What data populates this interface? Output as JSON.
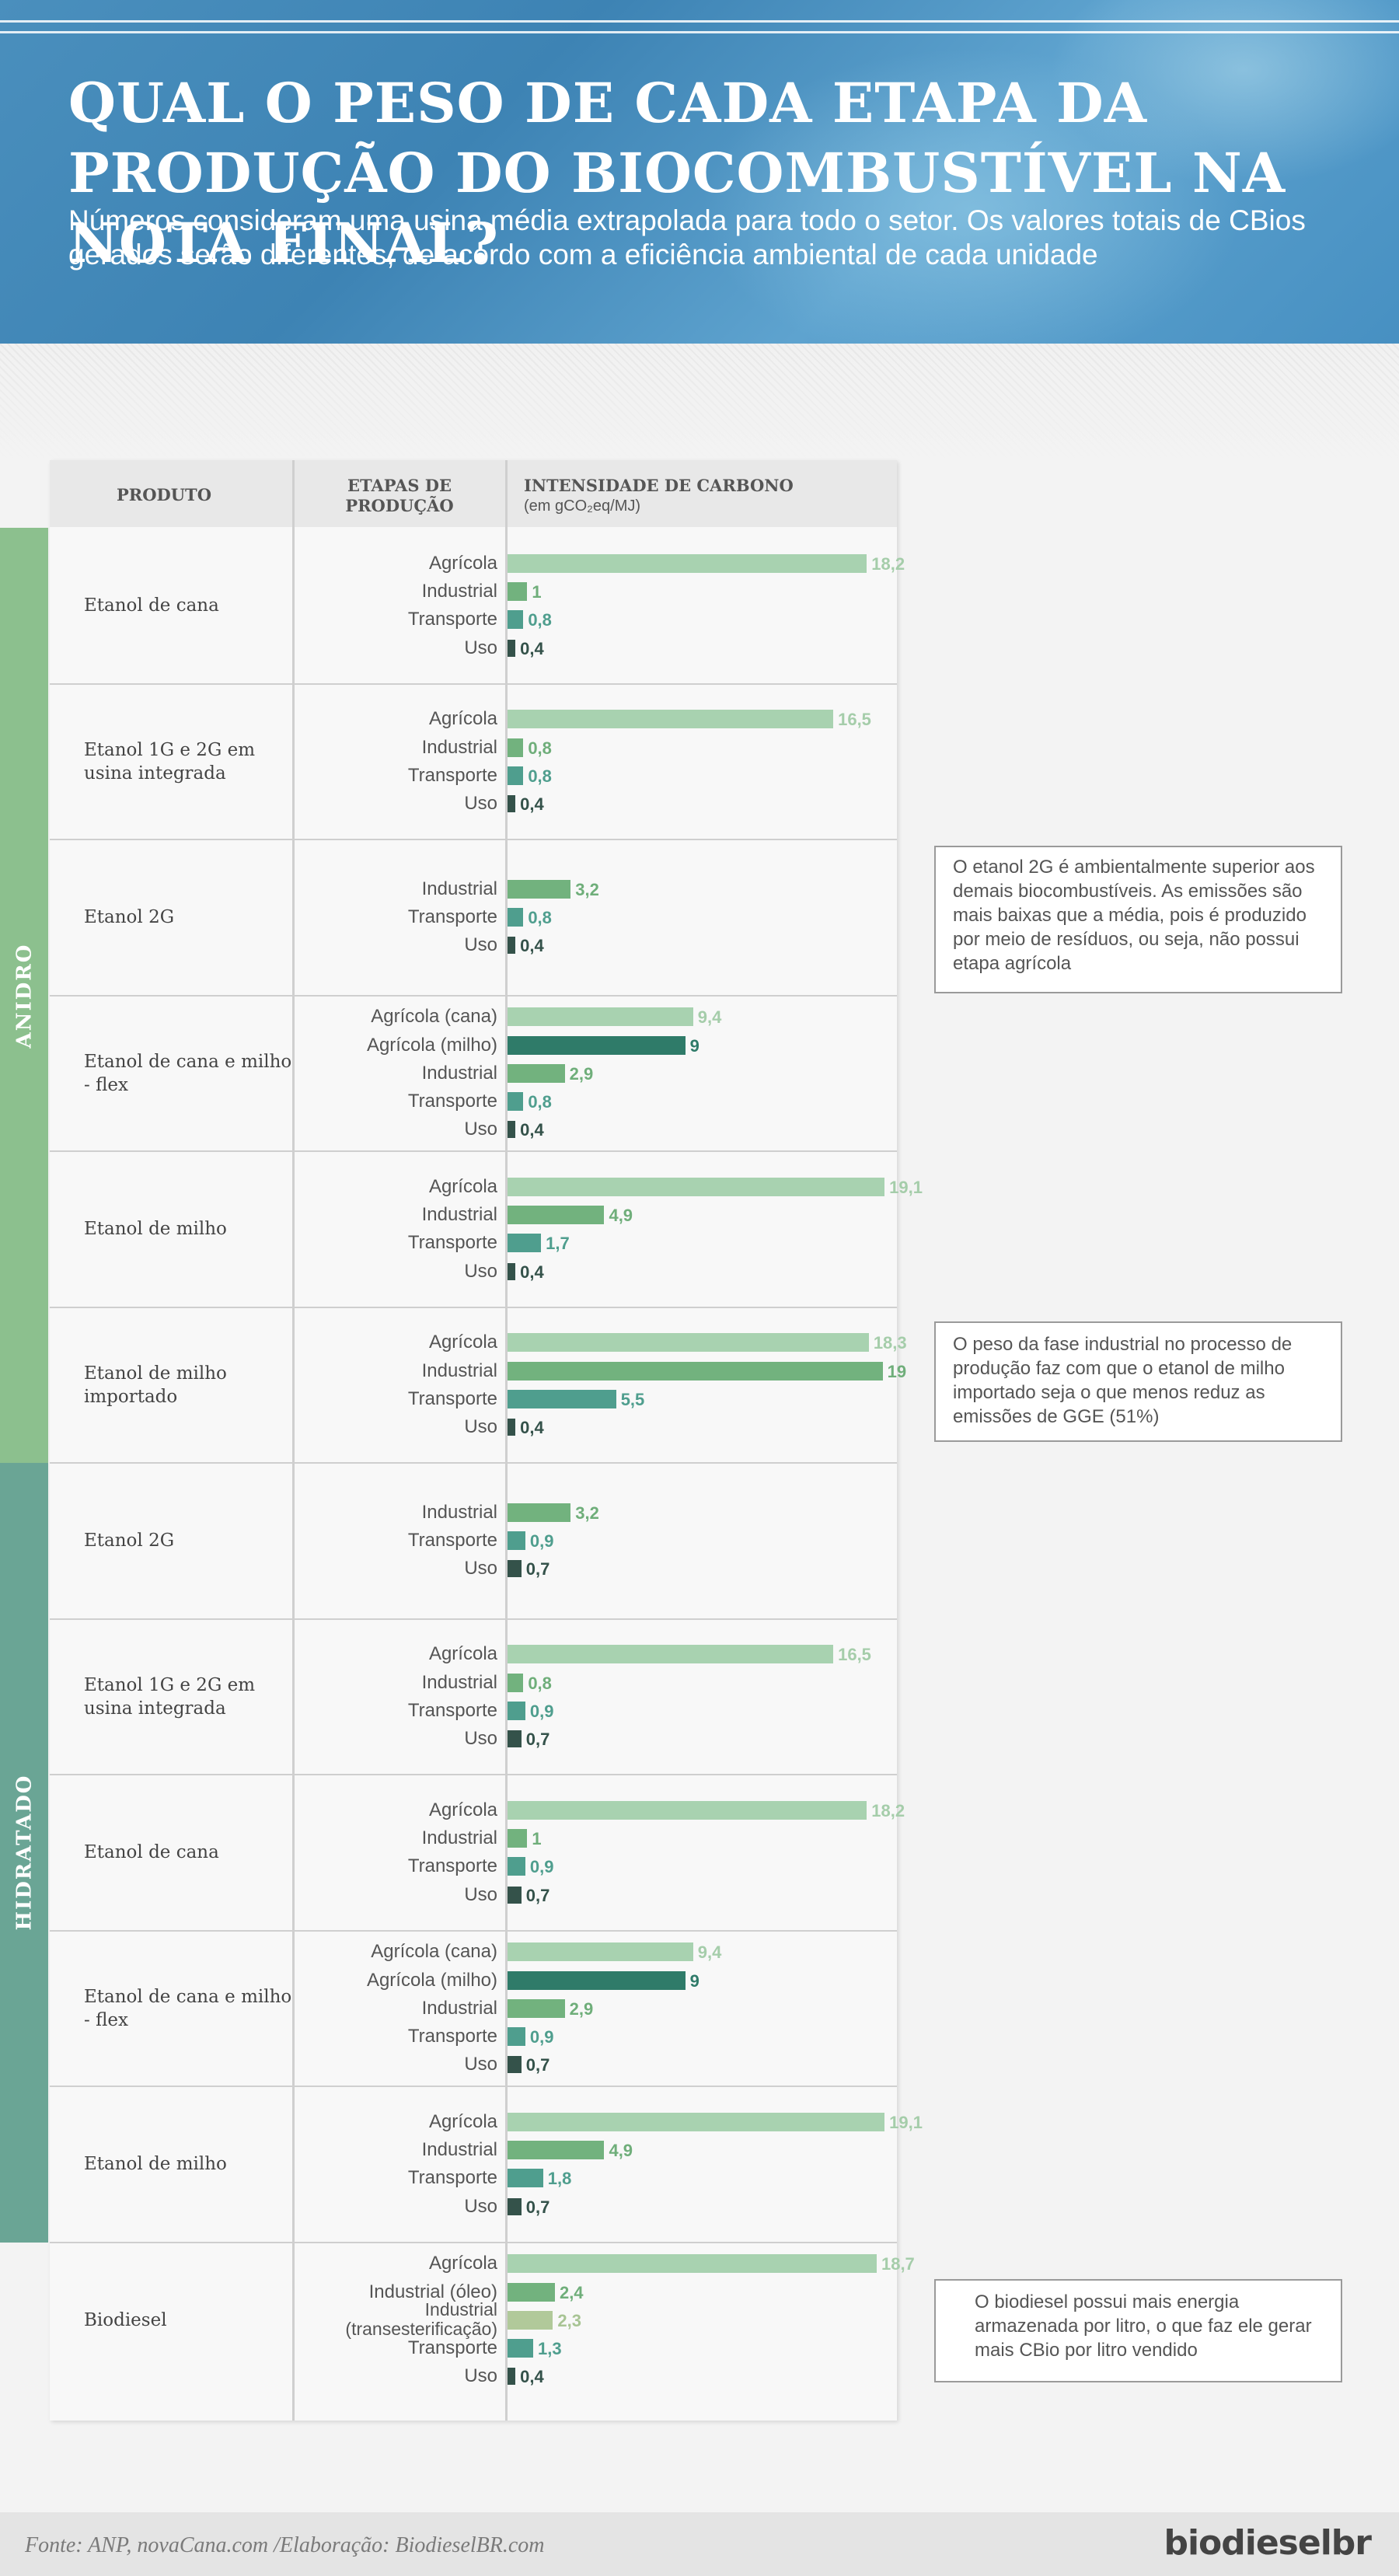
{
  "header": {
    "title": "QUAL O PESO DE CADA ETAPA DA PRODUÇÃO DO BIOCOMBUSTÍVEL NA NOTA FINAL?",
    "subtitle": "Números consideram uma usina média extrapolada para todo o setor. Os valores totais de CBios gerados serão diferentes, de acordo com a eficiência ambiental de cada unidade"
  },
  "columns": {
    "produto": "PRODUTO",
    "etapas": "ETAPAS DE PRODUÇÃO",
    "intensidade": "INTENSIDADE DE CARBONO",
    "unidade": "(em gCO₂eq/MJ)"
  },
  "groups": [
    {
      "label": "ANIDRO",
      "color": "#8cc08e"
    },
    {
      "label": "HIDRATADO",
      "color": "#6aa595"
    }
  ],
  "colors": {
    "Agricola": "#a8d2b0",
    "Agricola (milho)": "#2f7b69",
    "Industrial": "#72b27e",
    "Industrial (oleo)": "#72b27e",
    "Industrial (transest)": "#b1c99a",
    "Transporte": "#4f9e8e",
    "Uso": "#34524a"
  },
  "chart_data": {
    "type": "bar",
    "title": "QUAL O PESO DE CADA ETAPA DA PRODUÇÃO DO BIOCOMBUSTÍVEL NA NOTA FINAL?",
    "xlabel": "INTENSIDADE DE CARBONO (em gCO₂eq/MJ)",
    "products": [
      {
        "name": "Etanol de cana",
        "group": "ANIDRO",
        "stages": [
          {
            "label": "Agrícola",
            "value": 18.2,
            "text": "18,2",
            "kind": "Agricola"
          },
          {
            "label": "Industrial",
            "value": 1,
            "text": "1",
            "kind": "Industrial"
          },
          {
            "label": "Transporte",
            "value": 0.8,
            "text": "0,8",
            "kind": "Transporte"
          },
          {
            "label": "Uso",
            "value": 0.4,
            "text": "0,4",
            "kind": "Uso"
          }
        ]
      },
      {
        "name": "Etanol 1G e 2G em usina integrada",
        "group": "ANIDRO",
        "stages": [
          {
            "label": "Agrícola",
            "value": 16.5,
            "text": "16,5",
            "kind": "Agricola"
          },
          {
            "label": "Industrial",
            "value": 0.8,
            "text": "0,8",
            "kind": "Industrial"
          },
          {
            "label": "Transporte",
            "value": 0.8,
            "text": "0,8",
            "kind": "Transporte"
          },
          {
            "label": "Uso",
            "value": 0.4,
            "text": "0,4",
            "kind": "Uso"
          }
        ]
      },
      {
        "name": "Etanol 2G",
        "group": "ANIDRO",
        "stages": [
          {
            "label": "Industrial",
            "value": 3.2,
            "text": "3,2",
            "kind": "Industrial"
          },
          {
            "label": "Transporte",
            "value": 0.8,
            "text": "0,8",
            "kind": "Transporte"
          },
          {
            "label": "Uso",
            "value": 0.4,
            "text": "0,4",
            "kind": "Uso"
          }
        ]
      },
      {
        "name": "Etanol de cana e milho - flex",
        "group": "ANIDRO",
        "stages": [
          {
            "label": "Agrícola (cana)",
            "value": 9.4,
            "text": "9,4",
            "kind": "Agricola"
          },
          {
            "label": "Agrícola (milho)",
            "value": 9,
            "text": "9",
            "kind": "Agricola (milho)"
          },
          {
            "label": "Industrial",
            "value": 2.9,
            "text": "2,9",
            "kind": "Industrial"
          },
          {
            "label": "Transporte",
            "value": 0.8,
            "text": "0,8",
            "kind": "Transporte"
          },
          {
            "label": "Uso",
            "value": 0.4,
            "text": "0,4",
            "kind": "Uso"
          }
        ]
      },
      {
        "name": "Etanol de milho",
        "group": "ANIDRO",
        "stages": [
          {
            "label": "Agrícola",
            "value": 19.1,
            "text": "19,1",
            "kind": "Agricola"
          },
          {
            "label": "Industrial",
            "value": 4.9,
            "text": "4,9",
            "kind": "Industrial"
          },
          {
            "label": "Transporte",
            "value": 1.7,
            "text": "1,7",
            "kind": "Transporte"
          },
          {
            "label": "Uso",
            "value": 0.4,
            "text": "0,4",
            "kind": "Uso"
          }
        ]
      },
      {
        "name": "Etanol de milho importado",
        "group": "ANIDRO",
        "stages": [
          {
            "label": "Agrícola",
            "value": 18.3,
            "text": "18,3",
            "kind": "Agricola"
          },
          {
            "label": "Industrial",
            "value": 19,
            "text": "19",
            "kind": "Industrial"
          },
          {
            "label": "Transporte",
            "value": 5.5,
            "text": "5,5",
            "kind": "Transporte"
          },
          {
            "label": "Uso",
            "value": 0.4,
            "text": "0,4",
            "kind": "Uso"
          }
        ]
      },
      {
        "name": "Etanol 2G",
        "group": "HIDRATADO",
        "stages": [
          {
            "label": "Industrial",
            "value": 3.2,
            "text": "3,2",
            "kind": "Industrial"
          },
          {
            "label": "Transporte",
            "value": 0.9,
            "text": "0,9",
            "kind": "Transporte"
          },
          {
            "label": "Uso",
            "value": 0.7,
            "text": "0,7",
            "kind": "Uso"
          }
        ]
      },
      {
        "name": "Etanol 1G e 2G em usina integrada",
        "group": "HIDRATADO",
        "stages": [
          {
            "label": "Agrícola",
            "value": 16.5,
            "text": "16,5",
            "kind": "Agricola"
          },
          {
            "label": "Industrial",
            "value": 0.8,
            "text": "0,8",
            "kind": "Industrial"
          },
          {
            "label": "Transporte",
            "value": 0.9,
            "text": "0,9",
            "kind": "Transporte"
          },
          {
            "label": "Uso",
            "value": 0.7,
            "text": "0,7",
            "kind": "Uso"
          }
        ]
      },
      {
        "name": "Etanol de cana",
        "group": "HIDRATADO",
        "stages": [
          {
            "label": "Agrícola",
            "value": 18.2,
            "text": "18,2",
            "kind": "Agricola"
          },
          {
            "label": "Industrial",
            "value": 1,
            "text": "1",
            "kind": "Industrial"
          },
          {
            "label": "Transporte",
            "value": 0.9,
            "text": "0,9",
            "kind": "Transporte"
          },
          {
            "label": "Uso",
            "value": 0.7,
            "text": "0,7",
            "kind": "Uso"
          }
        ]
      },
      {
        "name": "Etanol de cana e milho - flex",
        "group": "HIDRATADO",
        "stages": [
          {
            "label": "Agrícola (cana)",
            "value": 9.4,
            "text": "9,4",
            "kind": "Agricola"
          },
          {
            "label": "Agrícola (milho)",
            "value": 9,
            "text": "9",
            "kind": "Agricola (milho)"
          },
          {
            "label": "Industrial",
            "value": 2.9,
            "text": "2,9",
            "kind": "Industrial"
          },
          {
            "label": "Transporte",
            "value": 0.9,
            "text": "0,9",
            "kind": "Transporte"
          },
          {
            "label": "Uso",
            "value": 0.7,
            "text": "0,7",
            "kind": "Uso"
          }
        ]
      },
      {
        "name": "Etanol de milho",
        "group": "HIDRATADO",
        "stages": [
          {
            "label": "Agrícola",
            "value": 19.1,
            "text": "19,1",
            "kind": "Agricola"
          },
          {
            "label": "Industrial",
            "value": 4.9,
            "text": "4,9",
            "kind": "Industrial"
          },
          {
            "label": "Transporte",
            "value": 1.8,
            "text": "1,8",
            "kind": "Transporte"
          },
          {
            "label": "Uso",
            "value": 0.7,
            "text": "0,7",
            "kind": "Uso"
          }
        ]
      },
      {
        "name": "Biodiesel",
        "group": "",
        "stages": [
          {
            "label": "Agrícola",
            "value": 18.7,
            "text": "18,7",
            "kind": "Agricola"
          },
          {
            "label": "Industrial (óleo)",
            "value": 2.4,
            "text": "2,4",
            "kind": "Industrial (oleo)"
          },
          {
            "label": "Industrial (transesterificação)",
            "value": 2.3,
            "text": "2,3",
            "kind": "Industrial (transest)"
          },
          {
            "label": "Transporte",
            "value": 1.3,
            "text": "1,3",
            "kind": "Transporte"
          },
          {
            "label": "Uso",
            "value": 0.4,
            "text": "0,4",
            "kind": "Uso"
          }
        ]
      }
    ]
  },
  "notes": [
    "O etanol 2G é ambientalmente superior aos demais biocombustíveis. As emissões são mais baixas que a média, pois é produzido por meio de resíduos, ou seja, não possui etapa agrícola",
    "O peso da fase industrial no processo de produção faz com que o etanol de milho importado seja o que menos reduz as emissões de GGE (51%)",
    "O biodiesel possui mais energia armazenada por litro, o que faz ele gerar mais CBio por litro vendido"
  ],
  "footer": {
    "source": "Fonte: ANP, novaCana.com /Elaboração: BiodieselBR.com",
    "logo": "biodieselbr"
  }
}
